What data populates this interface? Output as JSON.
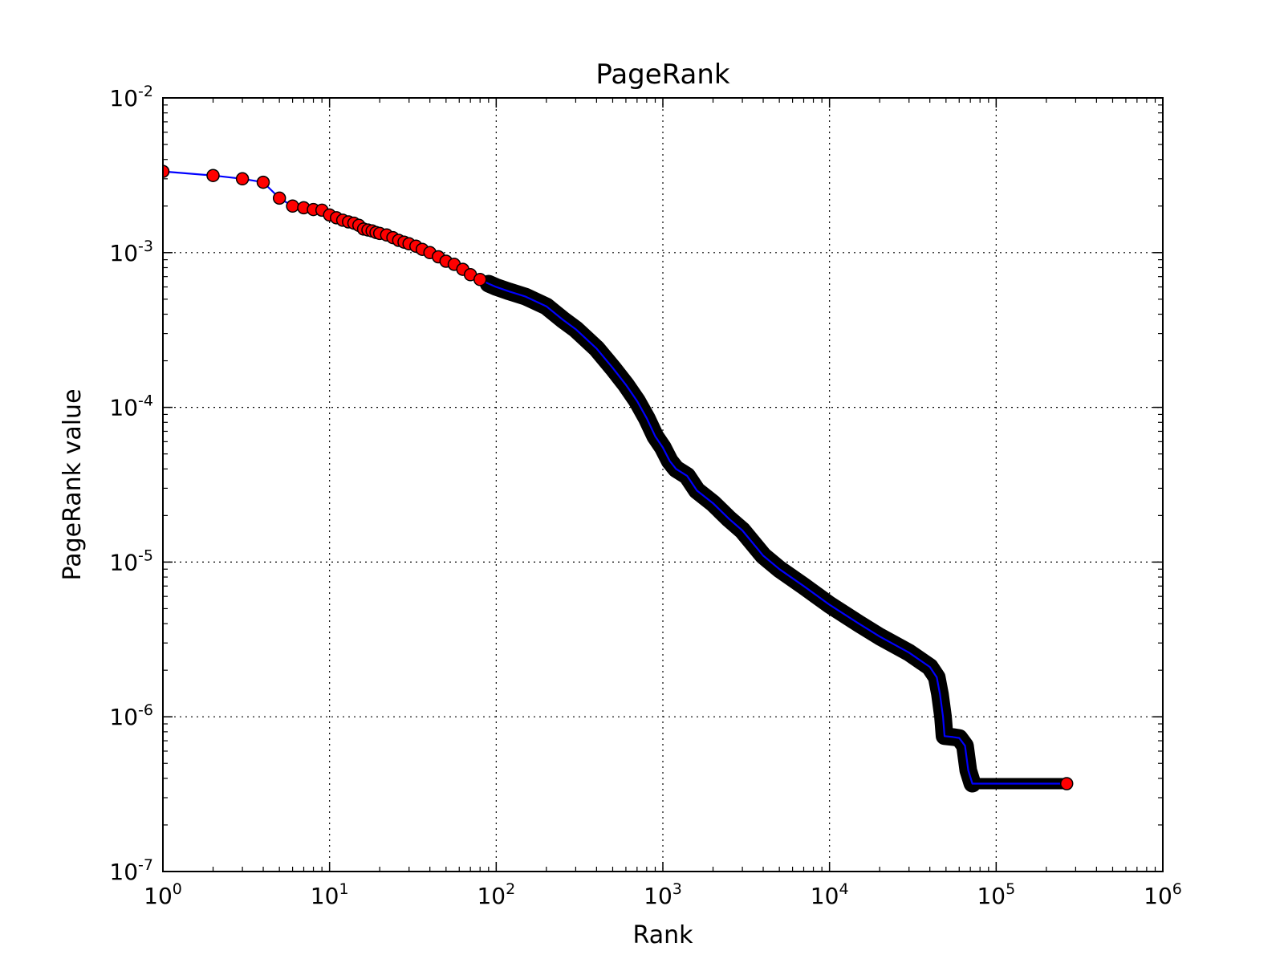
{
  "chart_data": {
    "type": "line",
    "title": "PageRank",
    "xlabel": "Rank",
    "ylabel": "PageRank value",
    "xscale": "log",
    "yscale": "log",
    "xlim": [
      1,
      1000000
    ],
    "ylim": [
      1e-07,
      0.01
    ],
    "x_tick_labels": [
      {
        "base": "10",
        "exp": "0"
      },
      {
        "base": "10",
        "exp": "1"
      },
      {
        "base": "10",
        "exp": "2"
      },
      {
        "base": "10",
        "exp": "3"
      },
      {
        "base": "10",
        "exp": "4"
      },
      {
        "base": "10",
        "exp": "5"
      },
      {
        "base": "10",
        "exp": "6"
      }
    ],
    "y_tick_labels": [
      {
        "base": "10",
        "exp": "-7"
      },
      {
        "base": "10",
        "exp": "-6"
      },
      {
        "base": "10",
        "exp": "-5"
      },
      {
        "base": "10",
        "exp": "-4"
      },
      {
        "base": "10",
        "exp": "-3"
      },
      {
        "base": "10",
        "exp": "-2"
      }
    ],
    "grid": true,
    "line_color": "#0000ff",
    "marker_face_color": "#ff0000",
    "marker_edge_color": "#000000",
    "series": [
      {
        "points": [
          [
            1,
            0.00335
          ],
          [
            2,
            0.00315
          ],
          [
            3,
            0.003
          ],
          [
            4,
            0.00285
          ],
          [
            5,
            0.00225
          ],
          [
            6,
            0.002
          ],
          [
            7,
            0.00195
          ],
          [
            8,
            0.0019
          ],
          [
            9,
            0.00188
          ],
          [
            10,
            0.00175
          ],
          [
            11,
            0.00168
          ],
          [
            12,
            0.00162
          ],
          [
            13,
            0.00158
          ],
          [
            14,
            0.00155
          ],
          [
            15,
            0.0015
          ],
          [
            16,
            0.00142
          ],
          [
            17,
            0.0014
          ],
          [
            18,
            0.00138
          ],
          [
            19,
            0.00135
          ],
          [
            20,
            0.00133
          ],
          [
            22,
            0.0013
          ],
          [
            24,
            0.00125
          ],
          [
            26,
            0.0012
          ],
          [
            28,
            0.00117
          ],
          [
            30,
            0.00114
          ],
          [
            33,
            0.0011
          ],
          [
            36,
            0.00105
          ],
          [
            40,
            0.001
          ],
          [
            45,
            0.00094
          ],
          [
            50,
            0.00088
          ],
          [
            56,
            0.00084
          ],
          [
            63,
            0.00078
          ],
          [
            70,
            0.00072
          ],
          [
            80,
            0.00067
          ],
          [
            90,
            0.00063
          ],
          [
            100,
            0.0006
          ],
          [
            120,
            0.00056
          ],
          [
            150,
            0.00052
          ],
          [
            200,
            0.00045
          ],
          [
            250,
            0.00037
          ],
          [
            300,
            0.00032
          ],
          [
            400,
            0.00024
          ],
          [
            500,
            0.00018
          ],
          [
            600,
            0.00014
          ],
          [
            700,
            0.00011
          ],
          [
            800,
            8.5e-05
          ],
          [
            900,
            6.5e-05
          ],
          [
            1000,
            5.5e-05
          ],
          [
            1100,
            4.5e-05
          ],
          [
            1200,
            4e-05
          ],
          [
            1400,
            3.6e-05
          ],
          [
            1600,
            2.9e-05
          ],
          [
            2000,
            2.4e-05
          ],
          [
            2500,
            1.9e-05
          ],
          [
            3000,
            1.6e-05
          ],
          [
            4000,
            1.1e-05
          ],
          [
            5000,
            9e-06
          ],
          [
            7000,
            7e-06
          ],
          [
            10000,
            5.3e-06
          ],
          [
            15000,
            4e-06
          ],
          [
            20000,
            3.3e-06
          ],
          [
            30000,
            2.6e-06
          ],
          [
            40000,
            2.1e-06
          ],
          [
            44000,
            1.8e-06
          ],
          [
            46000,
            1.4e-06
          ],
          [
            48000,
            1e-06
          ],
          [
            49000,
            7.5e-07
          ],
          [
            55000,
            7.4e-07
          ],
          [
            60000,
            7.3e-07
          ],
          [
            65000,
            6.5e-07
          ],
          [
            68000,
            4.5e-07
          ],
          [
            72000,
            3.7e-07
          ],
          [
            100000,
            3.7e-07
          ],
          [
            150000,
            3.7e-07
          ],
          [
            200000,
            3.7e-07
          ],
          [
            265000,
            3.7e-07
          ]
        ]
      }
    ]
  }
}
